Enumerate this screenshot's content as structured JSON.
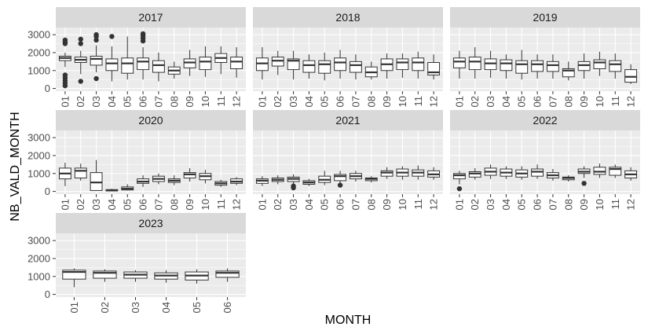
{
  "chart_data": {
    "type": "boxplot",
    "facet_variable": "year",
    "xlabel": "MONTH",
    "ylabel": "NB_VALD_MONTH",
    "ylim": [
      -150,
      3400
    ],
    "yticks": [
      0,
      1000,
      2000,
      3000
    ],
    "grid": true,
    "panels": [
      {
        "label": "2017",
        "boxes": [
          {
            "month": "01",
            "min": 1200,
            "q1": 1550,
            "median": 1700,
            "q3": 1800,
            "max": 2000,
            "outliers": [
              2500,
              2600,
              2700,
              750,
              600,
              450,
              300,
              150
            ]
          },
          {
            "month": "02",
            "min": 800,
            "q1": 1450,
            "median": 1600,
            "q3": 1750,
            "max": 2100,
            "outliers": [
              2500,
              2750,
              400
            ]
          },
          {
            "month": "03",
            "min": 900,
            "q1": 1300,
            "median": 1650,
            "q3": 1800,
            "max": 2400,
            "outliers": [
              2700,
              2900,
              3000,
              550
            ]
          },
          {
            "month": "04",
            "min": 400,
            "q1": 1000,
            "median": 1400,
            "q3": 1650,
            "max": 2350,
            "outliers": [
              2900
            ]
          },
          {
            "month": "05",
            "min": 500,
            "q1": 850,
            "median": 1400,
            "q3": 1700,
            "max": 2900,
            "outliers": []
          },
          {
            "month": "06",
            "min": 500,
            "q1": 1050,
            "median": 1500,
            "q3": 1700,
            "max": 2300,
            "outliers": [
              2650,
              2800,
              2950,
              3050
            ]
          },
          {
            "month": "07",
            "min": 400,
            "q1": 900,
            "median": 1300,
            "q3": 1550,
            "max": 2000,
            "outliers": []
          },
          {
            "month": "08",
            "min": 550,
            "q1": 800,
            "median": 1000,
            "q3": 1200,
            "max": 1500,
            "outliers": []
          },
          {
            "month": "09",
            "min": 700,
            "q1": 1150,
            "median": 1450,
            "q3": 1650,
            "max": 2150,
            "outliers": []
          },
          {
            "month": "10",
            "min": 650,
            "q1": 1050,
            "median": 1500,
            "q3": 1750,
            "max": 2350,
            "outliers": []
          },
          {
            "month": "11",
            "min": 800,
            "q1": 1450,
            "median": 1700,
            "q3": 1950,
            "max": 2350,
            "outliers": []
          },
          {
            "month": "12",
            "min": 600,
            "q1": 1100,
            "median": 1500,
            "q3": 1750,
            "max": 2300,
            "outliers": []
          }
        ]
      },
      {
        "label": "2018",
        "boxes": [
          {
            "month": "01",
            "min": 500,
            "q1": 1000,
            "median": 1400,
            "q3": 1700,
            "max": 2300,
            "outliers": []
          },
          {
            "month": "02",
            "min": 750,
            "q1": 1250,
            "median": 1550,
            "q3": 1750,
            "max": 2100,
            "outliers": []
          },
          {
            "month": "03",
            "min": 500,
            "q1": 1050,
            "median": 1550,
            "q3": 1650,
            "max": 2100,
            "outliers": []
          },
          {
            "month": "04",
            "min": 550,
            "q1": 900,
            "median": 1300,
            "q3": 1550,
            "max": 1900,
            "outliers": []
          },
          {
            "month": "05",
            "min": 450,
            "q1": 850,
            "median": 1350,
            "q3": 1550,
            "max": 2000,
            "outliers": []
          },
          {
            "month": "06",
            "min": 550,
            "q1": 1000,
            "median": 1450,
            "q3": 1700,
            "max": 2150,
            "outliers": []
          },
          {
            "month": "07",
            "min": 500,
            "q1": 900,
            "median": 1300,
            "q3": 1500,
            "max": 1900,
            "outliers": []
          },
          {
            "month": "08",
            "min": 500,
            "q1": 650,
            "median": 900,
            "q3": 1200,
            "max": 1500,
            "outliers": []
          },
          {
            "month": "09",
            "min": 550,
            "q1": 1000,
            "median": 1350,
            "q3": 1650,
            "max": 1950,
            "outliers": []
          },
          {
            "month": "10",
            "min": 600,
            "q1": 1050,
            "median": 1450,
            "q3": 1650,
            "max": 1950,
            "outliers": []
          },
          {
            "month": "11",
            "min": 550,
            "q1": 1000,
            "median": 1450,
            "q3": 1700,
            "max": 2050,
            "outliers": []
          },
          {
            "month": "12",
            "min": 500,
            "q1": 750,
            "median": 900,
            "q3": 1450,
            "max": 1900,
            "outliers": []
          }
        ]
      },
      {
        "label": "2019",
        "boxes": [
          {
            "month": "01",
            "min": 550,
            "q1": 1150,
            "median": 1500,
            "q3": 1700,
            "max": 2100,
            "outliers": []
          },
          {
            "month": "02",
            "min": 550,
            "q1": 1050,
            "median": 1500,
            "q3": 1750,
            "max": 2300,
            "outliers": []
          },
          {
            "month": "03",
            "min": 600,
            "q1": 1050,
            "median": 1400,
            "q3": 1650,
            "max": 2100,
            "outliers": []
          },
          {
            "month": "04",
            "min": 550,
            "q1": 1000,
            "median": 1400,
            "q3": 1600,
            "max": 1900,
            "outliers": []
          },
          {
            "month": "05",
            "min": 500,
            "q1": 850,
            "median": 1350,
            "q3": 1550,
            "max": 2150,
            "outliers": []
          },
          {
            "month": "06",
            "min": 550,
            "q1": 950,
            "median": 1350,
            "q3": 1550,
            "max": 1900,
            "outliers": []
          },
          {
            "month": "07",
            "min": 550,
            "q1": 950,
            "median": 1300,
            "q3": 1500,
            "max": 1900,
            "outliers": []
          },
          {
            "month": "08",
            "min": 450,
            "q1": 650,
            "median": 1000,
            "q3": 1100,
            "max": 1500,
            "outliers": []
          },
          {
            "month": "09",
            "min": 550,
            "q1": 1000,
            "median": 1300,
            "q3": 1500,
            "max": 1950,
            "outliers": []
          },
          {
            "month": "10",
            "min": 700,
            "q1": 1100,
            "median": 1450,
            "q3": 1600,
            "max": 2050,
            "outliers": []
          },
          {
            "month": "11",
            "min": 550,
            "q1": 950,
            "median": 1350,
            "q3": 1550,
            "max": 1950,
            "outliers": []
          },
          {
            "month": "12",
            "min": 250,
            "q1": 350,
            "median": 650,
            "q3": 1050,
            "max": 1350,
            "outliers": []
          }
        ]
      },
      {
        "label": "2020",
        "boxes": [
          {
            "month": "01",
            "min": 300,
            "q1": 700,
            "median": 1000,
            "q3": 1300,
            "max": 1600,
            "outliers": []
          },
          {
            "month": "02",
            "min": 600,
            "q1": 750,
            "median": 1150,
            "q3": 1300,
            "max": 1550,
            "outliers": []
          },
          {
            "month": "03",
            "min": 50,
            "q1": 50,
            "median": 500,
            "q3": 1050,
            "max": 1750,
            "outliers": []
          },
          {
            "month": "04",
            "min": 20,
            "q1": 30,
            "median": 60,
            "q3": 100,
            "max": 150,
            "outliers": []
          },
          {
            "month": "05",
            "min": 50,
            "q1": 80,
            "median": 150,
            "q3": 250,
            "max": 400,
            "outliers": []
          },
          {
            "month": "06",
            "min": 250,
            "q1": 450,
            "median": 550,
            "q3": 700,
            "max": 900,
            "outliers": []
          },
          {
            "month": "07",
            "min": 400,
            "q1": 550,
            "median": 700,
            "q3": 850,
            "max": 1000,
            "outliers": []
          },
          {
            "month": "08",
            "min": 350,
            "q1": 500,
            "median": 600,
            "q3": 700,
            "max": 900,
            "outliers": []
          },
          {
            "month": "09",
            "min": 550,
            "q1": 750,
            "median": 950,
            "q3": 1050,
            "max": 1300,
            "outliers": []
          },
          {
            "month": "10",
            "min": 450,
            "q1": 650,
            "median": 850,
            "q3": 1000,
            "max": 1200,
            "outliers": []
          },
          {
            "month": "11",
            "min": 250,
            "q1": 350,
            "median": 450,
            "q3": 550,
            "max": 650,
            "outliers": []
          },
          {
            "month": "12",
            "min": 350,
            "q1": 450,
            "median": 550,
            "q3": 700,
            "max": 800,
            "outliers": []
          }
        ]
      },
      {
        "label": "2021",
        "boxes": [
          {
            "month": "01",
            "min": 300,
            "q1": 450,
            "median": 600,
            "q3": 700,
            "max": 850,
            "outliers": []
          },
          {
            "month": "02",
            "min": 400,
            "q1": 550,
            "median": 650,
            "q3": 750,
            "max": 900,
            "outliers": []
          },
          {
            "month": "03",
            "min": 400,
            "q1": 550,
            "median": 700,
            "q3": 800,
            "max": 950,
            "outliers": [
              300,
              200
            ]
          },
          {
            "month": "04",
            "min": 300,
            "q1": 400,
            "median": 500,
            "q3": 600,
            "max": 700,
            "outliers": []
          },
          {
            "month": "05",
            "min": 350,
            "q1": 500,
            "median": 650,
            "q3": 850,
            "max": 1150,
            "outliers": []
          },
          {
            "month": "06",
            "min": 450,
            "q1": 600,
            "median": 850,
            "q3": 950,
            "max": 1150,
            "outliers": [
              350
            ]
          },
          {
            "month": "07",
            "min": 550,
            "q1": 700,
            "median": 850,
            "q3": 1000,
            "max": 1150,
            "outliers": []
          },
          {
            "month": "08",
            "min": 500,
            "q1": 600,
            "median": 700,
            "q3": 750,
            "max": 850,
            "outliers": []
          },
          {
            "month": "09",
            "min": 700,
            "q1": 850,
            "median": 1050,
            "q3": 1150,
            "max": 1350,
            "outliers": []
          },
          {
            "month": "10",
            "min": 650,
            "q1": 850,
            "median": 1050,
            "q3": 1250,
            "max": 1400,
            "outliers": []
          },
          {
            "month": "11",
            "min": 650,
            "q1": 850,
            "median": 1050,
            "q3": 1200,
            "max": 1450,
            "outliers": []
          },
          {
            "month": "12",
            "min": 650,
            "q1": 800,
            "median": 950,
            "q3": 1150,
            "max": 1350,
            "outliers": []
          }
        ]
      },
      {
        "label": "2022",
        "boxes": [
          {
            "month": "01",
            "min": 400,
            "q1": 700,
            "median": 900,
            "q3": 1000,
            "max": 1150,
            "outliers": [
              150
            ]
          },
          {
            "month": "02",
            "min": 650,
            "q1": 800,
            "median": 1000,
            "q3": 1100,
            "max": 1300,
            "outliers": []
          },
          {
            "month": "03",
            "min": 700,
            "q1": 900,
            "median": 1100,
            "q3": 1300,
            "max": 1500,
            "outliers": []
          },
          {
            "month": "04",
            "min": 700,
            "q1": 850,
            "median": 1050,
            "q3": 1250,
            "max": 1400,
            "outliers": []
          },
          {
            "month": "05",
            "min": 650,
            "q1": 800,
            "median": 1000,
            "q3": 1200,
            "max": 1400,
            "outliers": []
          },
          {
            "month": "06",
            "min": 700,
            "q1": 850,
            "median": 1100,
            "q3": 1250,
            "max": 1500,
            "outliers": []
          },
          {
            "month": "07",
            "min": 600,
            "q1": 750,
            "median": 900,
            "q3": 1050,
            "max": 1250,
            "outliers": []
          },
          {
            "month": "08",
            "min": 550,
            "q1": 650,
            "median": 750,
            "q3": 800,
            "max": 900,
            "outliers": []
          },
          {
            "month": "09",
            "min": 750,
            "q1": 1000,
            "median": 1100,
            "q3": 1250,
            "max": 1400,
            "outliers": [
              450
            ]
          },
          {
            "month": "10",
            "min": 750,
            "q1": 950,
            "median": 1100,
            "q3": 1350,
            "max": 1550,
            "outliers": []
          },
          {
            "month": "11",
            "min": 750,
            "q1": 900,
            "median": 1250,
            "q3": 1350,
            "max": 1500,
            "outliers": []
          },
          {
            "month": "12",
            "min": 600,
            "q1": 750,
            "median": 950,
            "q3": 1150,
            "max": 1350,
            "outliers": []
          }
        ]
      },
      {
        "label": "2023",
        "boxes": [
          {
            "month": "01",
            "min": 400,
            "q1": 850,
            "median": 1250,
            "q3": 1350,
            "max": 1450,
            "outliers": []
          },
          {
            "month": "02",
            "min": 700,
            "q1": 900,
            "median": 1200,
            "q3": 1300,
            "max": 1400,
            "outliers": []
          },
          {
            "month": "03",
            "min": 700,
            "q1": 900,
            "median": 1100,
            "q3": 1250,
            "max": 1350,
            "outliers": []
          },
          {
            "month": "04",
            "min": 650,
            "q1": 850,
            "median": 1050,
            "q3": 1200,
            "max": 1350,
            "outliers": []
          },
          {
            "month": "05",
            "min": 600,
            "q1": 800,
            "median": 1050,
            "q3": 1250,
            "max": 1400,
            "outliers": []
          },
          {
            "month": "06",
            "min": 700,
            "q1": 950,
            "median": 1200,
            "q3": 1300,
            "max": 1450,
            "outliers": []
          }
        ]
      }
    ]
  },
  "colors": {
    "panel_background": "#ebebeb",
    "strip_background": "#d9d9d9",
    "grid_major": "#ffffff",
    "box_fill": "#ffffff",
    "box_stroke": "#333333",
    "outlier": "#333333"
  }
}
